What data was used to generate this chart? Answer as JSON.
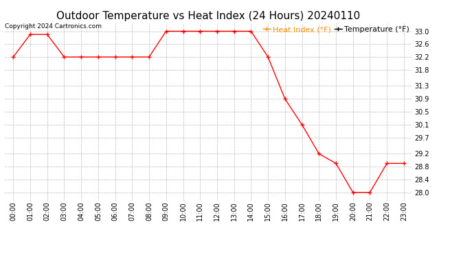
{
  "title": "Outdoor Temperature vs Heat Index (24 Hours) 20240110",
  "copyright_text": "Copyright 2024 Cartronics.com",
  "legend_heat_index": "Heat Index (°F)",
  "legend_temperature": "Temperature (°F)",
  "x_labels": [
    "00:00",
    "01:00",
    "02:00",
    "03:00",
    "04:00",
    "05:00",
    "06:00",
    "07:00",
    "08:00",
    "09:00",
    "10:00",
    "11:00",
    "12:00",
    "13:00",
    "14:00",
    "15:00",
    "16:00",
    "17:00",
    "18:00",
    "19:00",
    "20:00",
    "21:00",
    "22:00",
    "23:00"
  ],
  "temperature": [
    32.2,
    32.9,
    32.9,
    32.2,
    32.2,
    32.2,
    32.2,
    32.2,
    32.2,
    33.0,
    33.0,
    33.0,
    33.0,
    33.0,
    33.0,
    32.2,
    30.9,
    30.1,
    29.2,
    28.9,
    28.0,
    28.0,
    28.9,
    28.9
  ],
  "heat_index": [
    32.2,
    32.9,
    32.9,
    32.2,
    32.2,
    32.2,
    32.2,
    32.2,
    32.2,
    33.0,
    33.0,
    33.0,
    33.0,
    33.0,
    33.0,
    32.2,
    30.9,
    30.1,
    29.2,
    28.9,
    28.0,
    28.0,
    28.9,
    28.9
  ],
  "line_color": "#ff0000",
  "heat_index_legend_color": "#ff8c00",
  "temperature_legend_color": "#000000",
  "background_color": "#ffffff",
  "grid_color": "#b0b0b0",
  "ylim_min": 27.75,
  "ylim_max": 33.25,
  "yticks": [
    33.0,
    32.6,
    32.2,
    31.8,
    31.3,
    30.9,
    30.5,
    30.1,
    29.7,
    29.2,
    28.8,
    28.4,
    28.0
  ],
  "title_fontsize": 11,
  "tick_fontsize": 7,
  "legend_fontsize": 8,
  "copyright_fontsize": 6.5
}
